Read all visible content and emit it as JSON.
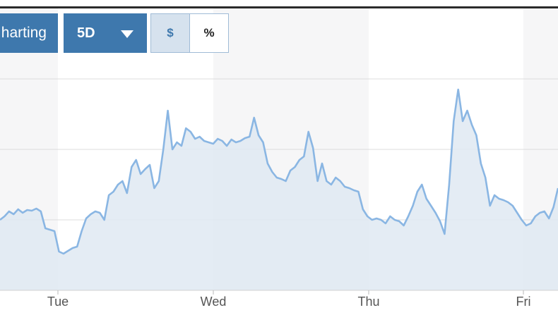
{
  "toolbar": {
    "charting_label": "harting",
    "range_label": "5D",
    "currency_toggle": {
      "dollar_label": "$",
      "percent_label": "%",
      "selected": "$"
    }
  },
  "colors": {
    "accent": "#3e78ad",
    "line": "#8ab6e3",
    "area": "#dfe9f2",
    "band": "#f6f6f7",
    "grid": "#dcdcdc"
  },
  "chart_data": {
    "type": "area",
    "title": "",
    "xlabel": "",
    "ylabel": "",
    "grid": "horizontal",
    "x_ticks": [
      "Tue",
      "Wed",
      "Thu",
      "Fri"
    ],
    "ylim": [
      0,
      3
    ],
    "series": [
      {
        "values": [
          1.0,
          1.05,
          1.12,
          1.08,
          1.15,
          1.1,
          1.14,
          1.13,
          1.16,
          1.12,
          0.88,
          0.86,
          0.84,
          0.55,
          0.52,
          0.56,
          0.6,
          0.62,
          0.84,
          1.02,
          1.08,
          1.12,
          1.1,
          1.0,
          1.35,
          1.4,
          1.5,
          1.55,
          1.38,
          1.75,
          1.85,
          1.65,
          1.72,
          1.78,
          1.45,
          1.55,
          2.0,
          2.55,
          2.0,
          2.1,
          2.05,
          2.3,
          2.25,
          2.15,
          2.18,
          2.12,
          2.1,
          2.08,
          2.15,
          2.12,
          2.05,
          2.14,
          2.1,
          2.12,
          2.16,
          2.18,
          2.45,
          2.2,
          2.1,
          1.8,
          1.68,
          1.6,
          1.58,
          1.55,
          1.7,
          1.75,
          1.85,
          1.9,
          2.25,
          2.02,
          1.55,
          1.8,
          1.55,
          1.5,
          1.6,
          1.55,
          1.47,
          1.45,
          1.42,
          1.4,
          1.15,
          1.05,
          1.0,
          1.02,
          1.0,
          0.95,
          1.05,
          1.0,
          0.98,
          0.92,
          1.05,
          1.2,
          1.4,
          1.5,
          1.3,
          1.2,
          1.1,
          0.98,
          0.8,
          1.5,
          2.4,
          2.85,
          2.4,
          2.55,
          2.35,
          2.2,
          1.8,
          1.6,
          1.2,
          1.35,
          1.3,
          1.28,
          1.25,
          1.2,
          1.1,
          1.0,
          0.92,
          0.95,
          1.05,
          1.1,
          1.12,
          1.02,
          1.18,
          1.45
        ]
      }
    ]
  }
}
